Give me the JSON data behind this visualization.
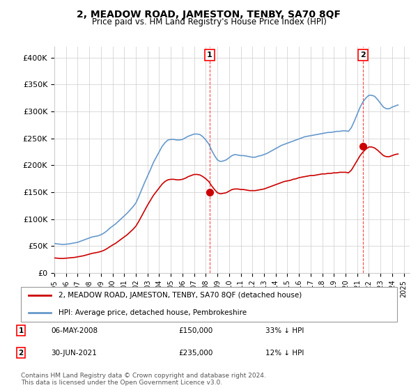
{
  "title": "2, MEADOW ROAD, JAMESTON, TENBY, SA70 8QF",
  "subtitle": "Price paid vs. HM Land Registry's House Price Index (HPI)",
  "ylabel": "",
  "ylim": [
    0,
    420000
  ],
  "yticks": [
    0,
    50000,
    100000,
    150000,
    200000,
    250000,
    300000,
    350000,
    400000
  ],
  "ytick_labels": [
    "£0",
    "£50K",
    "£100K",
    "£150K",
    "£200K",
    "£250K",
    "£300K",
    "£350K",
    "£400K"
  ],
  "x_start_year": 1995,
  "x_end_year": 2025,
  "purchase1_date": "2008-05-06",
  "purchase1_value": 150000,
  "purchase1_label": "1",
  "purchase1_note": "06-MAY-2008   £150,000   33% ↓ HPI",
  "purchase2_date": "2021-06-30",
  "purchase2_value": 235000,
  "purchase2_label": "2",
  "purchase2_note": "30-JUN-2021   £235,000   12% ↓ HPI",
  "red_line_color": "#cc0000",
  "blue_line_color": "#6699cc",
  "dashed_line_color": "#ff4444",
  "background_color": "#ffffff",
  "grid_color": "#cccccc",
  "legend_label_red": "2, MEADOW ROAD, JAMESTON, TENBY, SA70 8QF (detached house)",
  "legend_label_blue": "HPI: Average price, detached house, Pembrokeshire",
  "footer": "Contains HM Land Registry data © Crown copyright and database right 2024.\nThis data is licensed under the Open Government Licence v3.0.",
  "hpi_data": {
    "years": [
      1995.0,
      1995.25,
      1995.5,
      1995.75,
      1996.0,
      1996.25,
      1996.5,
      1996.75,
      1997.0,
      1997.25,
      1997.5,
      1997.75,
      1998.0,
      1998.25,
      1998.5,
      1998.75,
      1999.0,
      1999.25,
      1999.5,
      1999.75,
      2000.0,
      2000.25,
      2000.5,
      2000.75,
      2001.0,
      2001.25,
      2001.5,
      2001.75,
      2002.0,
      2002.25,
      2002.5,
      2002.75,
      2003.0,
      2003.25,
      2003.5,
      2003.75,
      2004.0,
      2004.25,
      2004.5,
      2004.75,
      2005.0,
      2005.25,
      2005.5,
      2005.75,
      2006.0,
      2006.25,
      2006.5,
      2006.75,
      2007.0,
      2007.25,
      2007.5,
      2007.75,
      2008.0,
      2008.25,
      2008.5,
      2008.75,
      2009.0,
      2009.25,
      2009.5,
      2009.75,
      2010.0,
      2010.25,
      2010.5,
      2010.75,
      2011.0,
      2011.25,
      2011.5,
      2011.75,
      2012.0,
      2012.25,
      2012.5,
      2012.75,
      2013.0,
      2013.25,
      2013.5,
      2013.75,
      2014.0,
      2014.25,
      2014.5,
      2014.75,
      2015.0,
      2015.25,
      2015.5,
      2015.75,
      2016.0,
      2016.25,
      2016.5,
      2016.75,
      2017.0,
      2017.25,
      2017.5,
      2017.75,
      2018.0,
      2018.25,
      2018.5,
      2018.75,
      2019.0,
      2019.25,
      2019.5,
      2019.75,
      2020.0,
      2020.25,
      2020.5,
      2020.75,
      2021.0,
      2021.25,
      2021.5,
      2021.75,
      2022.0,
      2022.25,
      2022.5,
      2022.75,
      2023.0,
      2023.25,
      2023.5,
      2023.75,
      2024.0,
      2024.25,
      2024.5
    ],
    "values": [
      55000,
      54000,
      53500,
      53000,
      53500,
      54000,
      55000,
      56000,
      57000,
      59000,
      61000,
      63000,
      65000,
      67000,
      68000,
      69000,
      71000,
      74000,
      78000,
      83000,
      87000,
      91000,
      96000,
      101000,
      106000,
      111000,
      117000,
      123000,
      130000,
      142000,
      155000,
      168000,
      180000,
      192000,
      205000,
      215000,
      225000,
      235000,
      242000,
      247000,
      248000,
      248000,
      247000,
      247000,
      248000,
      251000,
      254000,
      256000,
      258000,
      258000,
      257000,
      253000,
      247000,
      240000,
      228000,
      218000,
      210000,
      207000,
      208000,
      210000,
      214000,
      218000,
      220000,
      219000,
      218000,
      218000,
      217000,
      216000,
      215000,
      215000,
      217000,
      218000,
      220000,
      222000,
      225000,
      228000,
      231000,
      234000,
      237000,
      239000,
      241000,
      243000,
      245000,
      247000,
      249000,
      251000,
      253000,
      254000,
      255000,
      256000,
      257000,
      258000,
      259000,
      260000,
      261000,
      261000,
      262000,
      263000,
      263000,
      264000,
      264000,
      263000,
      270000,
      282000,
      295000,
      308000,
      318000,
      325000,
      330000,
      330000,
      328000,
      322000,
      315000,
      308000,
      305000,
      305000,
      308000,
      310000,
      312000
    ]
  },
  "property_hpi_data": {
    "years": [
      1995.0,
      1995.25,
      1995.5,
      1995.75,
      1996.0,
      1996.25,
      1996.5,
      1996.75,
      1997.0,
      1997.25,
      1997.5,
      1997.75,
      1998.0,
      1998.25,
      1998.5,
      1998.75,
      1999.0,
      1999.25,
      1999.5,
      1999.75,
      2000.0,
      2000.25,
      2000.5,
      2000.75,
      2001.0,
      2001.25,
      2001.5,
      2001.75,
      2002.0,
      2002.25,
      2002.5,
      2002.75,
      2003.0,
      2003.25,
      2003.5,
      2003.75,
      2004.0,
      2004.25,
      2004.5,
      2004.75,
      2005.0,
      2005.25,
      2005.5,
      2005.75,
      2006.0,
      2006.25,
      2006.5,
      2006.75,
      2007.0,
      2007.25,
      2007.5,
      2007.75,
      2008.0,
      2008.25,
      2008.5,
      2008.75,
      2009.0,
      2009.25,
      2009.5,
      2009.75,
      2010.0,
      2010.25,
      2010.5,
      2010.75,
      2011.0,
      2011.25,
      2011.5,
      2011.75,
      2012.0,
      2012.25,
      2012.5,
      2012.75,
      2013.0,
      2013.25,
      2013.5,
      2013.75,
      2014.0,
      2014.25,
      2014.5,
      2014.75,
      2015.0,
      2015.25,
      2015.5,
      2015.75,
      2016.0,
      2016.25,
      2016.5,
      2016.75,
      2017.0,
      2017.25,
      2017.5,
      2017.75,
      2018.0,
      2018.25,
      2018.5,
      2018.75,
      2019.0,
      2019.25,
      2019.5,
      2019.75,
      2020.0,
      2020.25,
      2020.5,
      2020.75,
      2021.0,
      2021.25,
      2021.5,
      2021.75,
      2022.0,
      2022.25,
      2022.5,
      2022.75,
      2023.0,
      2023.25,
      2023.5,
      2023.75,
      2024.0,
      2024.25,
      2024.5
    ],
    "values": [
      28000,
      27500,
      27000,
      27000,
      27500,
      28000,
      28500,
      29000,
      30000,
      31000,
      32000,
      33500,
      35000,
      36500,
      37500,
      38500,
      40000,
      42000,
      45000,
      48500,
      52000,
      55000,
      59000,
      63000,
      67000,
      71000,
      76000,
      81000,
      87000,
      96000,
      106000,
      116000,
      126000,
      135000,
      144000,
      151000,
      158000,
      165000,
      170000,
      173000,
      174000,
      174000,
      173000,
      173000,
      174000,
      176000,
      179000,
      181000,
      183000,
      183000,
      182000,
      179000,
      175000,
      170000,
      162000,
      155000,
      149000,
      147000,
      148000,
      149000,
      152000,
      155000,
      156000,
      156000,
      155000,
      155000,
      154000,
      153000,
      153000,
      153000,
      154000,
      155000,
      156000,
      158000,
      160000,
      162000,
      164000,
      166000,
      168000,
      170000,
      171000,
      172000,
      174000,
      175000,
      177000,
      178000,
      179000,
      180000,
      181000,
      181000,
      182000,
      183000,
      184000,
      184000,
      185000,
      185000,
      186000,
      186000,
      187000,
      187000,
      187000,
      186000,
      191000,
      200000,
      209000,
      218000,
      225000,
      230000,
      234000,
      234000,
      232000,
      228000,
      223000,
      218000,
      216000,
      216000,
      218000,
      220000,
      221000
    ]
  }
}
